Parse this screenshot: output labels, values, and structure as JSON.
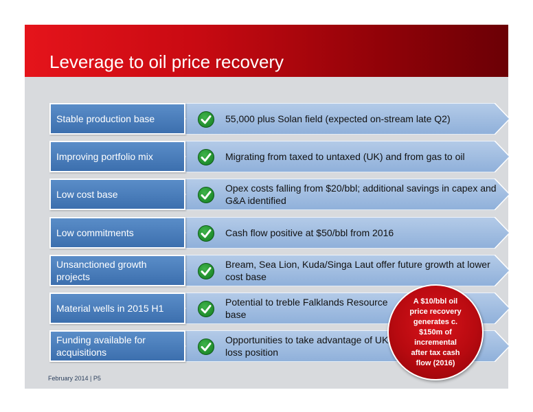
{
  "slide": {
    "title": "Leverage to oil price recovery",
    "footer": "February 2014 | P5"
  },
  "rows": [
    {
      "label": "Stable production base",
      "text": "55,000 plus Solan field (expected on-stream late Q2)"
    },
    {
      "label": "Improving portfolio mix",
      "text": "Migrating from taxed to untaxed (UK) and from gas to oil"
    },
    {
      "label": "Low cost base",
      "text": "Opex costs falling from $20/bbl; additional savings in capex and G&A identified"
    },
    {
      "label": "Low commitments",
      "text": "Cash flow positive at $50/bbl from 2016"
    },
    {
      "label": "Unsanctioned growth projects",
      "text": "Bream, Sea Lion, Kuda/Singa Laut offer future growth at lower cost base"
    },
    {
      "label": "Material wells in 2015 H1",
      "text": "Potential to treble Falklands Resource base"
    },
    {
      "label": "Funding available for acquisitions",
      "text": "Opportunities to take advantage of UK tax loss position"
    }
  ],
  "badge": {
    "text": "A $10/bbl oil price recovery generates c. $150m of incremental after tax cash flow (2016)"
  },
  "colors": {
    "header_start": "#e5141b",
    "header_end": "#6b0005",
    "label_blue": "#3c6fae",
    "arrow_blue": "#9ab7dd",
    "check_green": "#1d8a2a",
    "badge_red": "#c00d14"
  },
  "icons": {
    "check": "check-circle-icon"
  }
}
